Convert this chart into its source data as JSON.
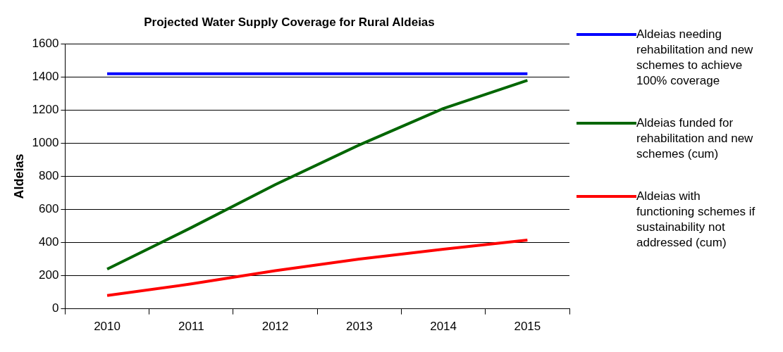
{
  "chart_data": {
    "type": "line",
    "title": "Projected Water Supply Coverage for Rural Aldeias",
    "ylabel": "Aldeias",
    "categories": [
      "2010",
      "2011",
      "2012",
      "2013",
      "2014",
      "2015"
    ],
    "series": [
      {
        "name": "Aldeias needing rehabilitation and new schemes to achieve 100% coverage",
        "color": "#0000ff",
        "values": [
          1420,
          1420,
          1420,
          1420,
          1420,
          1420
        ]
      },
      {
        "name": "Aldeias funded for rehabilitation and new schemes (cum)",
        "color": "#006600",
        "values": [
          240,
          490,
          750,
          990,
          1210,
          1380
        ]
      },
      {
        "name": "Aldeias with functioning schemes if sustainability not addressed (cum)",
        "color": "#ff0000",
        "values": [
          80,
          150,
          230,
          300,
          360,
          415
        ]
      }
    ],
    "ylim": [
      0,
      1600
    ],
    "yticks": [
      0,
      200,
      400,
      600,
      800,
      1000,
      1200,
      1400,
      1600
    ],
    "grid": "y",
    "legend": "right",
    "marker": "none",
    "line_style": "solid"
  }
}
